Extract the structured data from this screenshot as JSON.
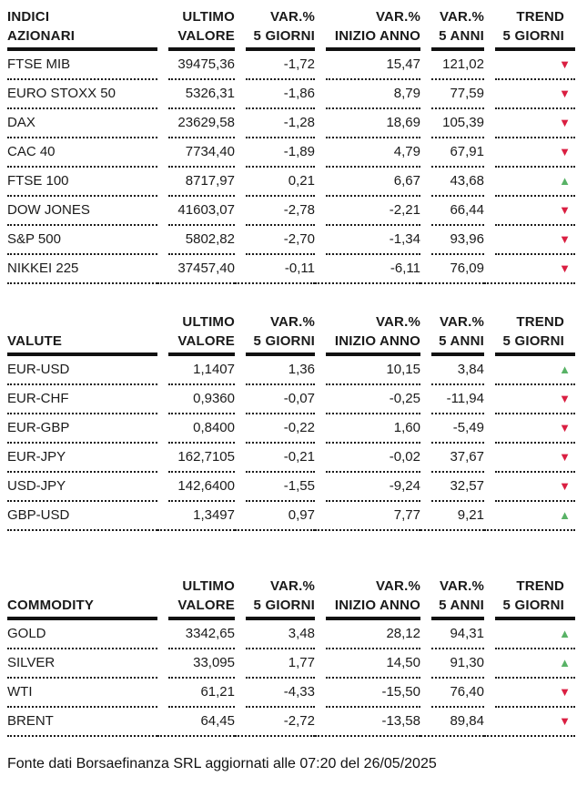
{
  "colors": {
    "trend_up": "#58b266",
    "trend_down": "#da1e41",
    "text": "#1a1a1a"
  },
  "icons": {
    "trend_up_glyph": "▲",
    "trend_down_glyph": "▼"
  },
  "column_headers": [
    {
      "line1": "ULTIMO",
      "line2": "VALORE"
    },
    {
      "line1": "VAR.%",
      "line2": "5 GIORNI"
    },
    {
      "line1": "VAR.%",
      "line2": "INIZIO ANNO"
    },
    {
      "line1": "VAR.%",
      "line2": "5 ANNI"
    },
    {
      "line1": "TREND",
      "line2": "5 GIORNI"
    }
  ],
  "tables": [
    {
      "id": "indici-azionari",
      "title_line1": "INDICI",
      "title_line2": "AZIONARI",
      "rows": [
        {
          "name": "FTSE MIB",
          "last": "39475,36",
          "chg5d": "-1,72",
          "chgYtd": "15,47",
          "chg5y": "121,02",
          "trend": "down"
        },
        {
          "name": "EURO STOXX 50",
          "last": "5326,31",
          "chg5d": "-1,86",
          "chgYtd": "8,79",
          "chg5y": "77,59",
          "trend": "down"
        },
        {
          "name": "DAX",
          "last": "23629,58",
          "chg5d": "-1,28",
          "chgYtd": "18,69",
          "chg5y": "105,39",
          "trend": "down"
        },
        {
          "name": "CAC 40",
          "last": "7734,40",
          "chg5d": "-1,89",
          "chgYtd": "4,79",
          "chg5y": "67,91",
          "trend": "down"
        },
        {
          "name": "FTSE 100",
          "last": "8717,97",
          "chg5d": "0,21",
          "chgYtd": "6,67",
          "chg5y": "43,68",
          "trend": "up"
        },
        {
          "name": "DOW JONES",
          "last": "41603,07",
          "chg5d": "-2,78",
          "chgYtd": "-2,21",
          "chg5y": "66,44",
          "trend": "down"
        },
        {
          "name": "S&P 500",
          "last": "5802,82",
          "chg5d": "-2,70",
          "chgYtd": "-1,34",
          "chg5y": "93,96",
          "trend": "down"
        },
        {
          "name": "NIKKEI 225",
          "last": "37457,40",
          "chg5d": "-0,11",
          "chgYtd": "-6,11",
          "chg5y": "76,09",
          "trend": "down"
        }
      ]
    },
    {
      "id": "valute",
      "title_line1": "",
      "title_line2": "VALUTE",
      "rows": [
        {
          "name": "EUR-USD",
          "last": "1,1407",
          "chg5d": "1,36",
          "chgYtd": "10,15",
          "chg5y": "3,84",
          "trend": "up"
        },
        {
          "name": "EUR-CHF",
          "last": "0,9360",
          "chg5d": "-0,07",
          "chgYtd": "-0,25",
          "chg5y": "-11,94",
          "trend": "down"
        },
        {
          "name": "EUR-GBP",
          "last": "0,8400",
          "chg5d": "-0,22",
          "chgYtd": "1,60",
          "chg5y": "-5,49",
          "trend": "down"
        },
        {
          "name": "EUR-JPY",
          "last": "162,7105",
          "chg5d": "-0,21",
          "chgYtd": "-0,02",
          "chg5y": "37,67",
          "trend": "down"
        },
        {
          "name": "USD-JPY",
          "last": "142,6400",
          "chg5d": "-1,55",
          "chgYtd": "-9,24",
          "chg5y": "32,57",
          "trend": "down"
        },
        {
          "name": "GBP-USD",
          "last": "1,3497",
          "chg5d": "0,97",
          "chgYtd": "7,77",
          "chg5y": "9,21",
          "trend": "up"
        }
      ]
    },
    {
      "id": "commodity",
      "title_line1": "",
      "title_line2": "COMMODITY",
      "rows": [
        {
          "name": "GOLD",
          "last": "3342,65",
          "chg5d": "3,48",
          "chgYtd": "28,12",
          "chg5y": "94,31",
          "trend": "up"
        },
        {
          "name": "SILVER",
          "last": "33,095",
          "chg5d": "1,77",
          "chgYtd": "14,50",
          "chg5y": "91,30",
          "trend": "up"
        },
        {
          "name": "WTI",
          "last": "61,21",
          "chg5d": "-4,33",
          "chgYtd": "-15,50",
          "chg5y": "76,40",
          "trend": "down"
        },
        {
          "name": "BRENT",
          "last": "64,45",
          "chg5d": "-2,72",
          "chgYtd": "-13,58",
          "chg5y": "89,84",
          "trend": "down"
        }
      ]
    }
  ],
  "footer": {
    "text": "Fonte dati Borsaefinanza SRL aggiornati alle 07:20 del 26/05/2025"
  }
}
